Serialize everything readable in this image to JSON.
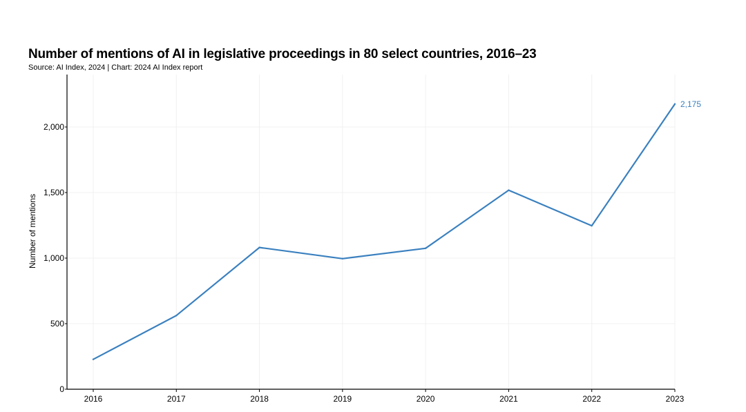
{
  "chart_data": {
    "type": "line",
    "title": "Number of mentions of AI in legislative proceedings in 80 select countries, 2016–23",
    "subtitle": "Source: AI Index, 2024 | Chart: 2024 AI Index report",
    "xlabel": "",
    "ylabel": "Number of mentions",
    "categories": [
      "2016",
      "2017",
      "2018",
      "2019",
      "2020",
      "2021",
      "2022",
      "2023"
    ],
    "series": [
      {
        "name": "Mentions",
        "values": [
          228,
          562,
          1081,
          996,
          1075,
          1518,
          1247,
          2175
        ],
        "color": "#3a80bf"
      }
    ],
    "ylim": [
      0,
      2400
    ],
    "yticks": [
      0,
      500,
      1000,
      1500,
      2000
    ],
    "ytick_labels": [
      "0",
      "500",
      "1,000",
      "1,500",
      "2,000"
    ],
    "data_label": {
      "index": 7,
      "text": "2,175"
    },
    "grid": true,
    "gridline_color": "#f0f0f0"
  }
}
